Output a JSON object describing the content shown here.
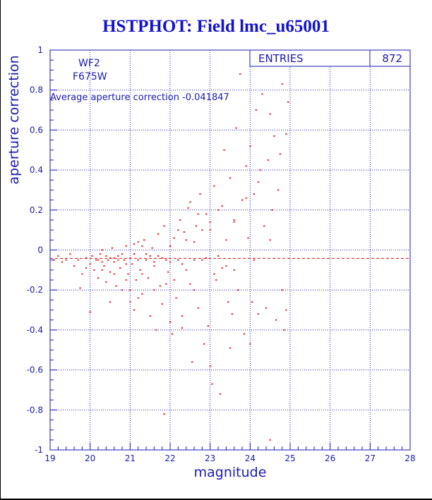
{
  "title": "HSTPHOT: Field lmc_u65001",
  "stats": {
    "label": "ENTRIES",
    "value": "872"
  },
  "info": {
    "chip": "WF2",
    "filter": "F675W"
  },
  "average_text": "Average aperture correction -0.041847",
  "colors": {
    "title": "#1212cc",
    "axis": "#1a1ab4",
    "data": "#e01010"
  },
  "chart_data": {
    "type": "scatter",
    "title": "HSTPHOT: Field lmc_u65001",
    "xlabel": "magnitude",
    "ylabel": "aperture correction",
    "xlim": [
      19,
      28
    ],
    "ylim": [
      -1,
      1
    ],
    "xticks": [
      19,
      20,
      21,
      22,
      23,
      24,
      25,
      26,
      27,
      28
    ],
    "yticks": [
      -1,
      -0.8,
      -0.6,
      -0.4,
      -0.2,
      0,
      0.2,
      0.4,
      0.6,
      0.8,
      1
    ],
    "grid": true,
    "entries": 872,
    "mean_line": -0.041847,
    "points": [
      [
        19.1,
        -0.05
      ],
      [
        19.2,
        -0.03
      ],
      [
        19.3,
        -0.06
      ],
      [
        19.4,
        -0.05
      ],
      [
        19.5,
        -0.02
      ],
      [
        19.6,
        -0.08
      ],
      [
        19.7,
        -0.05
      ],
      [
        19.75,
        -0.19
      ],
      [
        19.8,
        -0.12
      ],
      [
        19.9,
        -0.04
      ],
      [
        20.0,
        -0.07
      ],
      [
        20.0,
        -0.31
      ],
      [
        20.05,
        -0.03
      ],
      [
        20.1,
        -0.1
      ],
      [
        20.15,
        -0.05
      ],
      [
        20.2,
        -0.14
      ],
      [
        20.25,
        -0.02
      ],
      [
        20.3,
        0.0
      ],
      [
        20.35,
        -0.08
      ],
      [
        20.4,
        -0.16
      ],
      [
        20.45,
        -0.05
      ],
      [
        20.5,
        -0.11
      ],
      [
        20.55,
        0.01
      ],
      [
        20.6,
        -0.06
      ],
      [
        20.65,
        -0.18
      ],
      [
        20.7,
        -0.03
      ],
      [
        20.75,
        -0.09
      ],
      [
        20.8,
        -0.2
      ],
      [
        20.85,
        -0.05
      ],
      [
        20.9,
        0.02
      ],
      [
        20.95,
        -0.12
      ],
      [
        21.0,
        -0.04
      ],
      [
        21.0,
        -0.26
      ],
      [
        21.05,
        -0.07
      ],
      [
        21.1,
        0.03
      ],
      [
        21.15,
        -0.15
      ],
      [
        21.2,
        -0.05
      ],
      [
        21.25,
        -0.1
      ],
      [
        21.3,
        -0.22
      ],
      [
        21.35,
        0.05
      ],
      [
        21.4,
        -0.02
      ],
      [
        21.45,
        -0.14
      ],
      [
        21.5,
        -0.33
      ],
      [
        21.55,
        0.01
      ],
      [
        21.6,
        -0.08
      ],
      [
        21.65,
        -0.4
      ],
      [
        21.7,
        0.08
      ],
      [
        21.75,
        -0.18
      ],
      [
        21.8,
        -0.27
      ],
      [
        21.85,
        0.12
      ],
      [
        21.9,
        -0.05
      ],
      [
        21.95,
        -0.11
      ],
      [
        22.0,
        0.02
      ],
      [
        22.05,
        -0.42
      ],
      [
        22.1,
        0.06
      ],
      [
        22.15,
        -0.24
      ],
      [
        22.2,
        -0.05
      ],
      [
        22.25,
        0.15
      ],
      [
        22.3,
        -0.33
      ],
      [
        22.35,
        0.09
      ],
      [
        22.4,
        -0.1
      ],
      [
        22.45,
        0.21
      ],
      [
        22.5,
        -0.17
      ],
      [
        22.55,
        -0.56
      ],
      [
        22.6,
        0.04
      ],
      [
        22.65,
        0.12
      ],
      [
        22.7,
        -0.29
      ],
      [
        22.75,
        0.28
      ],
      [
        22.8,
        -0.05
      ],
      [
        22.85,
        -0.47
      ],
      [
        22.9,
        0.18
      ],
      [
        22.95,
        -0.38
      ],
      [
        23.0,
        0.1
      ],
      [
        23.05,
        -0.67
      ],
      [
        23.1,
        0.32
      ],
      [
        23.15,
        -0.15
      ],
      [
        23.2,
        0.2
      ],
      [
        23.25,
        -0.72
      ],
      [
        23.3,
        -0.09
      ],
      [
        23.35,
        0.5
      ],
      [
        23.4,
        0.05
      ],
      [
        23.45,
        -0.26
      ],
      [
        23.5,
        0.36
      ],
      [
        23.55,
        -0.32
      ],
      [
        23.6,
        0.14
      ],
      [
        23.65,
        0.61
      ],
      [
        23.7,
        -0.2
      ],
      [
        23.75,
        0.88
      ],
      [
        23.8,
        0.25
      ],
      [
        23.85,
        -0.42
      ],
      [
        23.9,
        0.42
      ],
      [
        23.95,
        0.06
      ],
      [
        24.0,
        0.52
      ],
      [
        24.05,
        -0.26
      ],
      [
        24.1,
        0.28
      ],
      [
        24.15,
        0.7
      ],
      [
        24.2,
        -0.32
      ],
      [
        24.25,
        0.4
      ],
      [
        24.3,
        0.78
      ],
      [
        24.35,
        0.12
      ],
      [
        24.4,
        -0.29
      ],
      [
        24.45,
        0.45
      ],
      [
        24.5,
        0.68
      ],
      [
        24.55,
        0.2
      ],
      [
        24.6,
        0.57
      ],
      [
        24.65,
        -0.35
      ],
      [
        24.7,
        0.3
      ],
      [
        24.75,
        0.48
      ],
      [
        24.8,
        0.83
      ],
      [
        24.85,
        -0.4
      ],
      [
        24.9,
        0.58
      ],
      [
        24.95,
        0.74
      ],
      [
        21.0,
        -0.2
      ],
      [
        21.2,
        -0.24
      ],
      [
        21.3,
        0.02
      ],
      [
        21.5,
        -0.03
      ],
      [
        21.6,
        -0.06
      ],
      [
        21.8,
        -0.04
      ],
      [
        21.2,
        0.04
      ],
      [
        20.8,
        -0.02
      ],
      [
        20.6,
        -0.04
      ],
      [
        20.4,
        -0.03
      ],
      [
        20.2,
        -0.05
      ],
      [
        21.4,
        -0.05
      ],
      [
        21.7,
        -0.03
      ],
      [
        21.1,
        -0.02
      ],
      [
        20.9,
        -0.07
      ],
      [
        20.7,
        -0.05
      ],
      [
        20.5,
        -0.04
      ],
      [
        20.3,
        -0.06
      ],
      [
        22.0,
        -0.06
      ],
      [
        22.3,
        -0.07
      ],
      [
        22.6,
        -0.05
      ],
      [
        22.9,
        -0.04
      ],
      [
        23.2,
        -0.03
      ],
      [
        23.4,
        -0.08
      ],
      [
        22.2,
        0.1
      ],
      [
        22.4,
        0.05
      ],
      [
        22.8,
        0.1
      ],
      [
        23.0,
        0.14
      ],
      [
        22.7,
        0.18
      ],
      [
        23.3,
        0.22
      ],
      [
        23.6,
        0.15
      ],
      [
        23.9,
        0.26
      ],
      [
        24.2,
        0.34
      ],
      [
        22.5,
        0.24
      ],
      [
        22.1,
        -0.15
      ],
      [
        22.6,
        -0.2
      ],
      [
        23.1,
        -0.12
      ],
      [
        23.6,
        -0.1
      ],
      [
        21.9,
        -0.17
      ],
      [
        21.6,
        -0.2
      ],
      [
        21.3,
        -0.12
      ],
      [
        20.9,
        -0.15
      ],
      [
        20.6,
        -0.12
      ],
      [
        20.3,
        -0.1
      ],
      [
        19.9,
        -0.09
      ],
      [
        24.5,
        0.05
      ],
      [
        24.8,
        -0.2
      ],
      [
        24.1,
        -0.05
      ],
      [
        21.85,
        -0.82
      ],
      [
        24.5,
        -0.95
      ],
      [
        22.3,
        -0.39
      ],
      [
        22.0,
        -0.36
      ],
      [
        23.5,
        -0.49
      ],
      [
        21.1,
        -0.3
      ],
      [
        20.5,
        -0.26
      ],
      [
        23.0,
        -0.58
      ],
      [
        24.0,
        -0.47
      ],
      [
        24.9,
        -0.3
      ]
    ]
  }
}
